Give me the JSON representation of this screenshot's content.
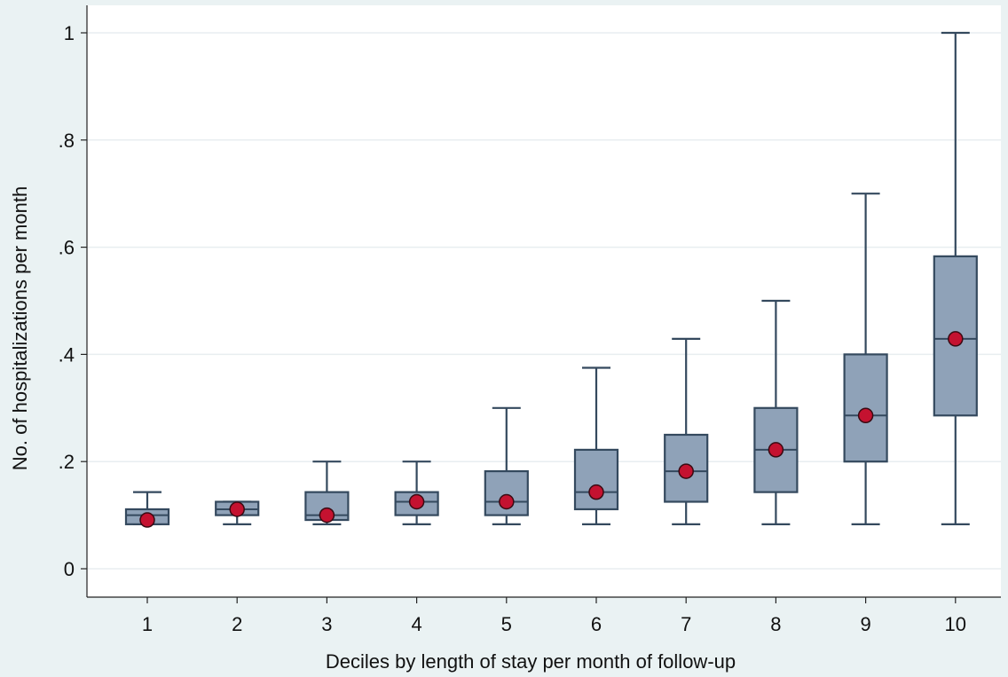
{
  "chart_data": {
    "type": "box",
    "title": "",
    "xlabel": "Deciles by length of stay per month of follow-up",
    "ylabel": "No. of hospitalizations per month",
    "ylim": [
      -0.05,
      1.02
    ],
    "yticks": [
      0,
      0.2,
      0.4,
      0.6,
      0.8,
      1
    ],
    "ytick_labels": [
      "0",
      ".2",
      ".4",
      ".6",
      ".8",
      "1"
    ],
    "grid": true,
    "legend": "none",
    "colors": {
      "box_fill": "#8fa2b8",
      "box_stroke": "#34495e",
      "mean_marker": "#c41230",
      "background": "#eaf2f3",
      "plot_area": "#ffffff"
    },
    "categories": [
      "1",
      "2",
      "3",
      "4",
      "5",
      "6",
      "7",
      "8",
      "9",
      "10"
    ],
    "boxes": [
      {
        "category": "1",
        "whisker_low": 0.083,
        "q1": 0.083,
        "median": 0.1,
        "q3": 0.111,
        "whisker_high": 0.143,
        "mean": 0.091
      },
      {
        "category": "2",
        "whisker_low": 0.083,
        "q1": 0.1,
        "median": 0.111,
        "q3": 0.125,
        "whisker_high": 0.125,
        "mean": 0.111
      },
      {
        "category": "3",
        "whisker_low": 0.083,
        "q1": 0.091,
        "median": 0.1,
        "q3": 0.143,
        "whisker_high": 0.2,
        "mean": 0.1
      },
      {
        "category": "4",
        "whisker_low": 0.083,
        "q1": 0.1,
        "median": 0.125,
        "q3": 0.143,
        "whisker_high": 0.2,
        "mean": 0.125
      },
      {
        "category": "5",
        "whisker_low": 0.083,
        "q1": 0.1,
        "median": 0.125,
        "q3": 0.182,
        "whisker_high": 0.3,
        "mean": 0.125
      },
      {
        "category": "6",
        "whisker_low": 0.083,
        "q1": 0.111,
        "median": 0.143,
        "q3": 0.222,
        "whisker_high": 0.375,
        "mean": 0.143
      },
      {
        "category": "7",
        "whisker_low": 0.083,
        "q1": 0.125,
        "median": 0.182,
        "q3": 0.25,
        "whisker_high": 0.429,
        "mean": 0.182
      },
      {
        "category": "8",
        "whisker_low": 0.083,
        "q1": 0.143,
        "median": 0.222,
        "q3": 0.3,
        "whisker_high": 0.5,
        "mean": 0.222
      },
      {
        "category": "9",
        "whisker_low": 0.083,
        "q1": 0.2,
        "median": 0.286,
        "q3": 0.4,
        "whisker_high": 0.7,
        "mean": 0.286
      },
      {
        "category": "10",
        "whisker_low": 0.083,
        "q1": 0.286,
        "median": 0.429,
        "q3": 0.583,
        "whisker_high": 1.0,
        "mean": 0.429
      }
    ]
  }
}
